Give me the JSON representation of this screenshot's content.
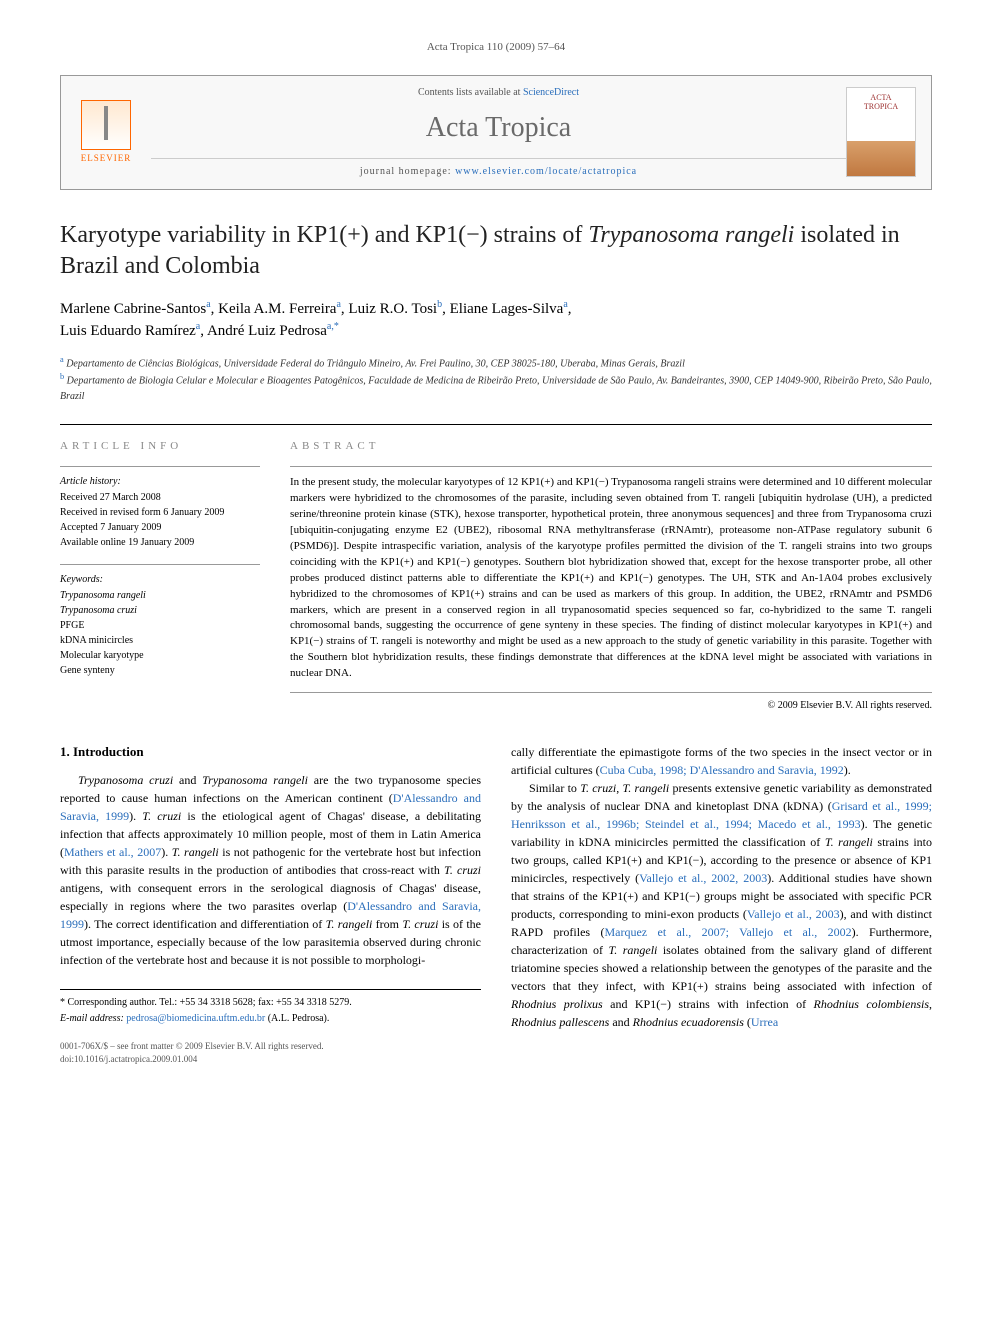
{
  "running_header": "Acta Tropica 110 (2009) 57–64",
  "masthead": {
    "contents_prefix": "Contents lists available at ",
    "contents_link": "ScienceDirect",
    "journal_name": "Acta Tropica",
    "homepage_prefix": "journal homepage: ",
    "homepage_url": "www.elsevier.com/locate/actatropica",
    "elsevier_label": "ELSEVIER",
    "cover_label_1": "ACTA",
    "cover_label_2": "TROPICA"
  },
  "title": "Karyotype variability in KP1(+) and KP1(−) strains of Trypanosoma rangeli isolated in Brazil and Colombia",
  "authors_html": "Marlene Cabrine-Santos",
  "authors": [
    {
      "name": "Marlene Cabrine-Santos",
      "aff": "a"
    },
    {
      "name": "Keila A.M. Ferreira",
      "aff": "a"
    },
    {
      "name": "Luiz R.O. Tosi",
      "aff": "b"
    },
    {
      "name": "Eliane Lages-Silva",
      "aff": "a"
    },
    {
      "name": "Luis Eduardo Ramírez",
      "aff": "a"
    },
    {
      "name": "André Luiz Pedrosa",
      "aff": "a,*"
    }
  ],
  "affiliations": [
    {
      "sup": "a",
      "text": "Departamento de Ciências Biológicas, Universidade Federal do Triângulo Mineiro, Av. Frei Paulino, 30, CEP 38025-180, Uberaba, Minas Gerais, Brazil"
    },
    {
      "sup": "b",
      "text": "Departamento de Biologia Celular e Molecular e Bioagentes Patogênicos, Faculdade de Medicina de Ribeirão Preto, Universidade de São Paulo, Av. Bandeirantes, 3900, CEP 14049-900, Ribeirão Preto, São Paulo, Brazil"
    }
  ],
  "article_info": {
    "heading": "ARTICLE INFO",
    "history_label": "Article history:",
    "history": [
      "Received 27 March 2008",
      "Received in revised form 6 January 2009",
      "Accepted 7 January 2009",
      "Available online 19 January 2009"
    ],
    "keywords_label": "Keywords:",
    "keywords": [
      "Trypanosoma rangeli",
      "Trypanosoma cruzi",
      "PFGE",
      "kDNA minicircles",
      "Molecular karyotype",
      "Gene synteny"
    ]
  },
  "abstract": {
    "heading": "ABSTRACT",
    "text": "In the present study, the molecular karyotypes of 12 KP1(+) and KP1(−) Trypanosoma rangeli strains were determined and 10 different molecular markers were hybridized to the chromosomes of the parasite, including seven obtained from T. rangeli [ubiquitin hydrolase (UH), a predicted serine/threonine protein kinase (STK), hexose transporter, hypothetical protein, three anonymous sequences] and three from Trypanosoma cruzi [ubiquitin-conjugating enzyme E2 (UBE2), ribosomal RNA methyltransferase (rRNAmtr), proteasome non-ATPase regulatory subunit 6 (PSMD6)]. Despite intraspecific variation, analysis of the karyotype profiles permitted the division of the T. rangeli strains into two groups coinciding with the KP1(+) and KP1(−) genotypes. Southern blot hybridization showed that, except for the hexose transporter probe, all other probes produced distinct patterns able to differentiate the KP1(+) and KP1(−) genotypes. The UH, STK and An-1A04 probes exclusively hybridized to the chromosomes of KP1(+) strains and can be used as markers of this group. In addition, the UBE2, rRNAmtr and PSMD6 markers, which are present in a conserved region in all trypanosomatid species sequenced so far, co-hybridized to the same T. rangeli chromosomal bands, suggesting the occurrence of gene synteny in these species. The finding of distinct molecular karyotypes in KP1(+) and KP1(−) strains of T. rangeli is noteworthy and might be used as a new approach to the study of genetic variability in this parasite. Together with the Southern blot hybridization results, these findings demonstrate that differences at the kDNA level might be associated with variations in nuclear DNA.",
    "copyright": "© 2009 Elsevier B.V. All rights reserved."
  },
  "section1": {
    "heading": "1. Introduction",
    "para1_a": "Trypanosoma cruzi and Trypanosoma rangeli are the two trypanosome species reported to cause human infections on the American continent (",
    "para1_ref1": "D'Alessandro and Saravia, 1999",
    "para1_b": "). T. cruzi is the etiological agent of Chagas' disease, a debilitating infection that affects approximately 10 million people, most of them in Latin America (",
    "para1_ref2": "Mathers et al., 2007",
    "para1_c": "). T. rangeli is not pathogenic for the vertebrate host but infection with this parasite results in the production of antibodies that cross-react with T. cruzi antigens, with consequent errors in the serological diagnosis of Chagas' disease, especially in regions where the two parasites overlap (",
    "para1_ref3": "D'Alessandro and Saravia, 1999",
    "para1_d": "). The correct identification and differentiation of T. rangeli from T. cruzi is of the utmost importance, especially because of the low parasitemia observed during chronic infection of the vertebrate host and because it is not possible to morphologi",
    "para1_e": "cally differentiate the epimastigote forms of the two species in the insect vector or in artificial cultures (",
    "para1_ref4": "Cuba Cuba, 1998; D'Alessandro and Saravia, 1992",
    "para1_f": ").",
    "para2_a": "Similar to T. cruzi, T. rangeli presents extensive genetic variability as demonstrated by the analysis of nuclear DNA and kinetoplast DNA (kDNA) (",
    "para2_ref1": "Grisard et al., 1999; Henriksson et al., 1996b; Steindel et al., 1994; Macedo et al., 1993",
    "para2_b": "). The genetic variability in kDNA minicircles permitted the classification of T. rangeli strains into two groups, called KP1(+) and KP1(−), according to the presence or absence of KP1 minicircles, respectively (",
    "para2_ref2": "Vallejo et al., 2002, 2003",
    "para2_c": "). Additional studies have shown that strains of the KP1(+) and KP1(−) groups might be associated with specific PCR products, corresponding to mini-exon products (",
    "para2_ref3": "Vallejo et al., 2003",
    "para2_d": "), and with distinct RAPD profiles (",
    "para2_ref4": "Marquez et al., 2007; Vallejo et al., 2002",
    "para2_e": "). Furthermore, characterization of T. rangeli isolates obtained from the salivary gland of different triatomine species showed a relationship between the genotypes of the parasite and the vectors that they infect, with KP1(+) strains being associated with infection of Rhodnius prolixus and KP1(−) strains with infection of Rhodnius colombiensis, Rhodnius pallescens and Rhodnius ecuadorensis (",
    "para2_ref5": "Urrea"
  },
  "footnote": {
    "corresponding": "* Corresponding author. Tel.: +55 34 3318 5628; fax: +55 34 3318 5279.",
    "email_label": "E-mail address: ",
    "email": "pedrosa@biomedicina.uftm.edu.br",
    "email_suffix": " (A.L. Pedrosa)."
  },
  "doi": {
    "line1": "0001-706X/$ – see front matter © 2009 Elsevier B.V. All rights reserved.",
    "line2": "doi:10.1016/j.actatropica.2009.01.004"
  },
  "colors": {
    "link": "#2a6ebb",
    "elsevier_orange": "#f60",
    "heading_gray": "#888"
  }
}
